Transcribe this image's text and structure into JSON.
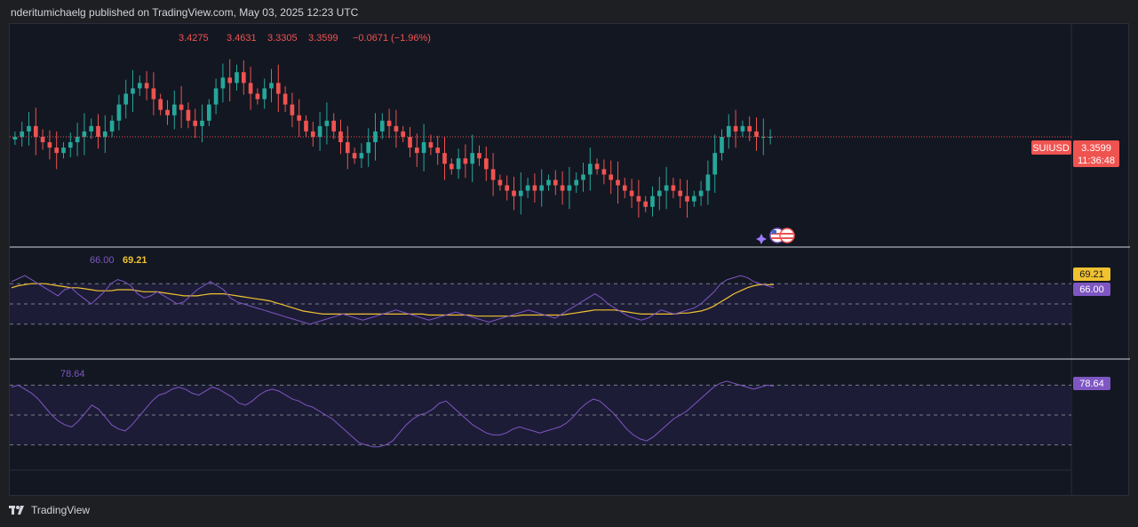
{
  "header": {
    "published_line": "nderitumichaelg published on TradingView.com, May 03, 2025 12:23 UTC"
  },
  "footer": {
    "brand": "TradingView"
  },
  "colors": {
    "up": "#26a69a",
    "down": "#ef5350",
    "rsi_line": "#7e57c2",
    "rsi_ma": "#f0c230",
    "band_fill": "#1e1f38",
    "axis_text": "#b2b5be"
  },
  "chart_data": [
    {
      "type": "candlestick",
      "symbol": "SUIUSD",
      "last_price": "3.3599",
      "countdown": "11:36:48",
      "ohlc_readout": {
        "open": "3.4275",
        "high": "3.4631",
        "low": "3.3305",
        "close": "3.3599",
        "change": "−0.0671",
        "change_pct": "(−1.96%)"
      },
      "close_series": [
        3.36,
        3.37,
        3.38,
        3.36,
        3.35,
        3.34,
        3.33,
        3.34,
        3.35,
        3.36,
        3.37,
        3.38,
        3.36,
        3.37,
        3.39,
        3.42,
        3.44,
        3.45,
        3.46,
        3.45,
        3.43,
        3.41,
        3.4,
        3.42,
        3.41,
        3.39,
        3.38,
        3.39,
        3.42,
        3.45,
        3.47,
        3.46,
        3.48,
        3.46,
        3.44,
        3.43,
        3.45,
        3.46,
        3.44,
        3.42,
        3.4,
        3.39,
        3.37,
        3.36,
        3.38,
        3.39,
        3.37,
        3.35,
        3.33,
        3.32,
        3.33,
        3.35,
        3.37,
        3.39,
        3.38,
        3.37,
        3.36,
        3.34,
        3.33,
        3.35,
        3.34,
        3.33,
        3.31,
        3.3,
        3.32,
        3.31,
        3.33,
        3.32,
        3.3,
        3.28,
        3.27,
        3.26,
        3.25,
        3.26,
        3.27,
        3.26,
        3.27,
        3.28,
        3.27,
        3.26,
        3.27,
        3.28,
        3.29,
        3.31,
        3.3,
        3.29,
        3.28,
        3.27,
        3.26,
        3.25,
        3.24,
        3.23,
        3.25,
        3.26,
        3.27,
        3.26,
        3.25,
        3.24,
        3.25,
        3.26,
        3.29,
        3.33,
        3.36,
        3.38,
        3.37,
        3.38,
        3.37,
        3.36,
        3.36,
        3.36
      ]
    },
    {
      "type": "line",
      "indicator": "RSI with moving average",
      "rsi_label": "66.00",
      "ma_label": "69.21",
      "bands": [
        70,
        50,
        30
      ],
      "rsi_series": [
        72,
        75,
        78,
        74,
        70,
        66,
        62,
        58,
        64,
        66,
        60,
        55,
        50,
        56,
        62,
        70,
        74,
        72,
        68,
        60,
        56,
        58,
        62,
        58,
        54,
        50,
        52,
        58,
        64,
        68,
        72,
        68,
        64,
        56,
        52,
        50,
        48,
        46,
        44,
        42,
        40,
        38,
        36,
        34,
        32,
        30,
        32,
        34,
        36,
        38,
        40,
        38,
        36,
        34,
        36,
        38,
        40,
        42,
        44,
        42,
        40,
        38,
        36,
        34,
        36,
        38,
        40,
        42,
        40,
        38,
        36,
        34,
        32,
        34,
        36,
        38,
        40,
        42,
        44,
        42,
        40,
        38,
        36,
        40,
        44,
        48,
        52,
        56,
        60,
        56,
        50,
        46,
        42,
        38,
        36,
        34,
        36,
        40,
        44,
        42,
        40,
        42,
        44,
        46,
        50,
        56,
        62,
        70,
        74,
        76,
        78,
        76,
        72,
        70,
        68,
        66
      ],
      "ma_series": [
        66,
        68,
        69,
        70,
        70,
        70,
        69,
        68,
        67,
        66,
        66,
        65,
        64,
        63,
        63,
        63,
        64,
        64,
        64,
        63,
        62,
        62,
        62,
        61,
        60,
        59,
        58,
        58,
        58,
        59,
        60,
        60,
        60,
        59,
        58,
        57,
        56,
        55,
        54,
        53,
        51,
        49,
        47,
        45,
        43,
        42,
        41,
        40,
        40,
        40,
        40,
        40,
        40,
        40,
        40,
        40,
        40,
        40,
        40,
        40,
        40,
        40,
        40,
        39,
        39,
        39,
        39,
        39,
        39,
        39,
        38,
        38,
        38,
        38,
        38,
        38,
        38,
        39,
        39,
        39,
        39,
        39,
        39,
        39,
        40,
        41,
        42,
        43,
        44,
        44,
        44,
        44,
        43,
        42,
        41,
        40,
        40,
        40,
        40,
        40,
        40,
        41,
        41,
        42,
        43,
        45,
        48,
        52,
        56,
        60,
        63,
        66,
        68,
        69,
        69,
        69
      ]
    },
    {
      "type": "line",
      "indicator": "Oscillator",
      "label": "78.64",
      "bands": [
        80,
        50,
        20
      ],
      "series": [
        78,
        80,
        76,
        72,
        66,
        58,
        50,
        44,
        40,
        38,
        44,
        52,
        60,
        56,
        48,
        40,
        36,
        34,
        40,
        48,
        56,
        64,
        70,
        72,
        76,
        78,
        76,
        72,
        70,
        74,
        78,
        76,
        72,
        68,
        62,
        60,
        64,
        70,
        74,
        76,
        74,
        70,
        66,
        64,
        60,
        58,
        54,
        50,
        46,
        40,
        34,
        28,
        22,
        20,
        18,
        18,
        20,
        24,
        32,
        40,
        46,
        50,
        52,
        56,
        62,
        64,
        58,
        52,
        46,
        40,
        36,
        32,
        30,
        30,
        32,
        36,
        38,
        36,
        34,
        32,
        34,
        36,
        38,
        42,
        48,
        56,
        62,
        66,
        64,
        58,
        52,
        44,
        36,
        30,
        26,
        24,
        28,
        34,
        40,
        46,
        50,
        54,
        60,
        66,
        72,
        78,
        82,
        84,
        82,
        80,
        78,
        76,
        78,
        80,
        79
      ]
    }
  ]
}
